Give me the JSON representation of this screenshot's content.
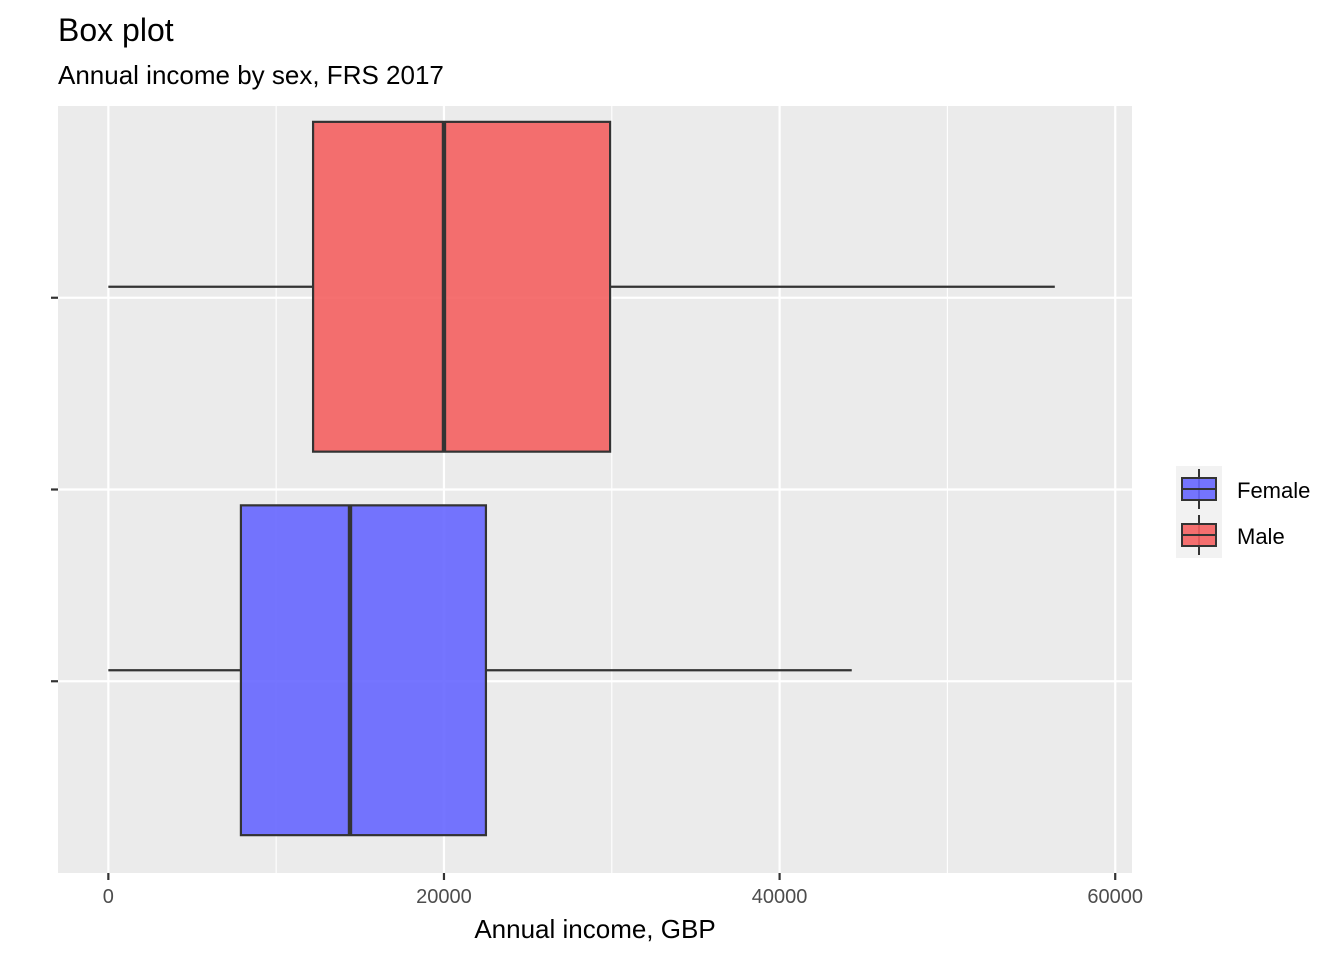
{
  "chart_data": {
    "type": "boxplot",
    "orientation": "horizontal",
    "title": "Box plot",
    "subtitle": "Annual income by sex, FRS 2017",
    "xlabel": "Annual income, GBP",
    "ylabel": "",
    "xlim": [
      -3000,
      61000
    ],
    "x_ticks": [
      0,
      20000,
      40000,
      60000
    ],
    "x_minor_ticks": [
      10000,
      30000,
      50000
    ],
    "grid": true,
    "legend": {
      "position": "right",
      "entries": [
        "Female",
        "Male"
      ]
    },
    "series": [
      {
        "name": "Female",
        "color": "#6666ff",
        "whisker_low": 0,
        "q1": 7900,
        "median": 14400,
        "q3": 22500,
        "whisker_high": 44300
      },
      {
        "name": "Male",
        "color": "#f46060",
        "whisker_low": 0,
        "q1": 12200,
        "median": 20000,
        "q3": 29900,
        "whisker_high": 56400
      }
    ]
  },
  "colors": {
    "panel_background": "#ebebeb",
    "grid": "#ffffff",
    "box_outline": "#333333"
  }
}
